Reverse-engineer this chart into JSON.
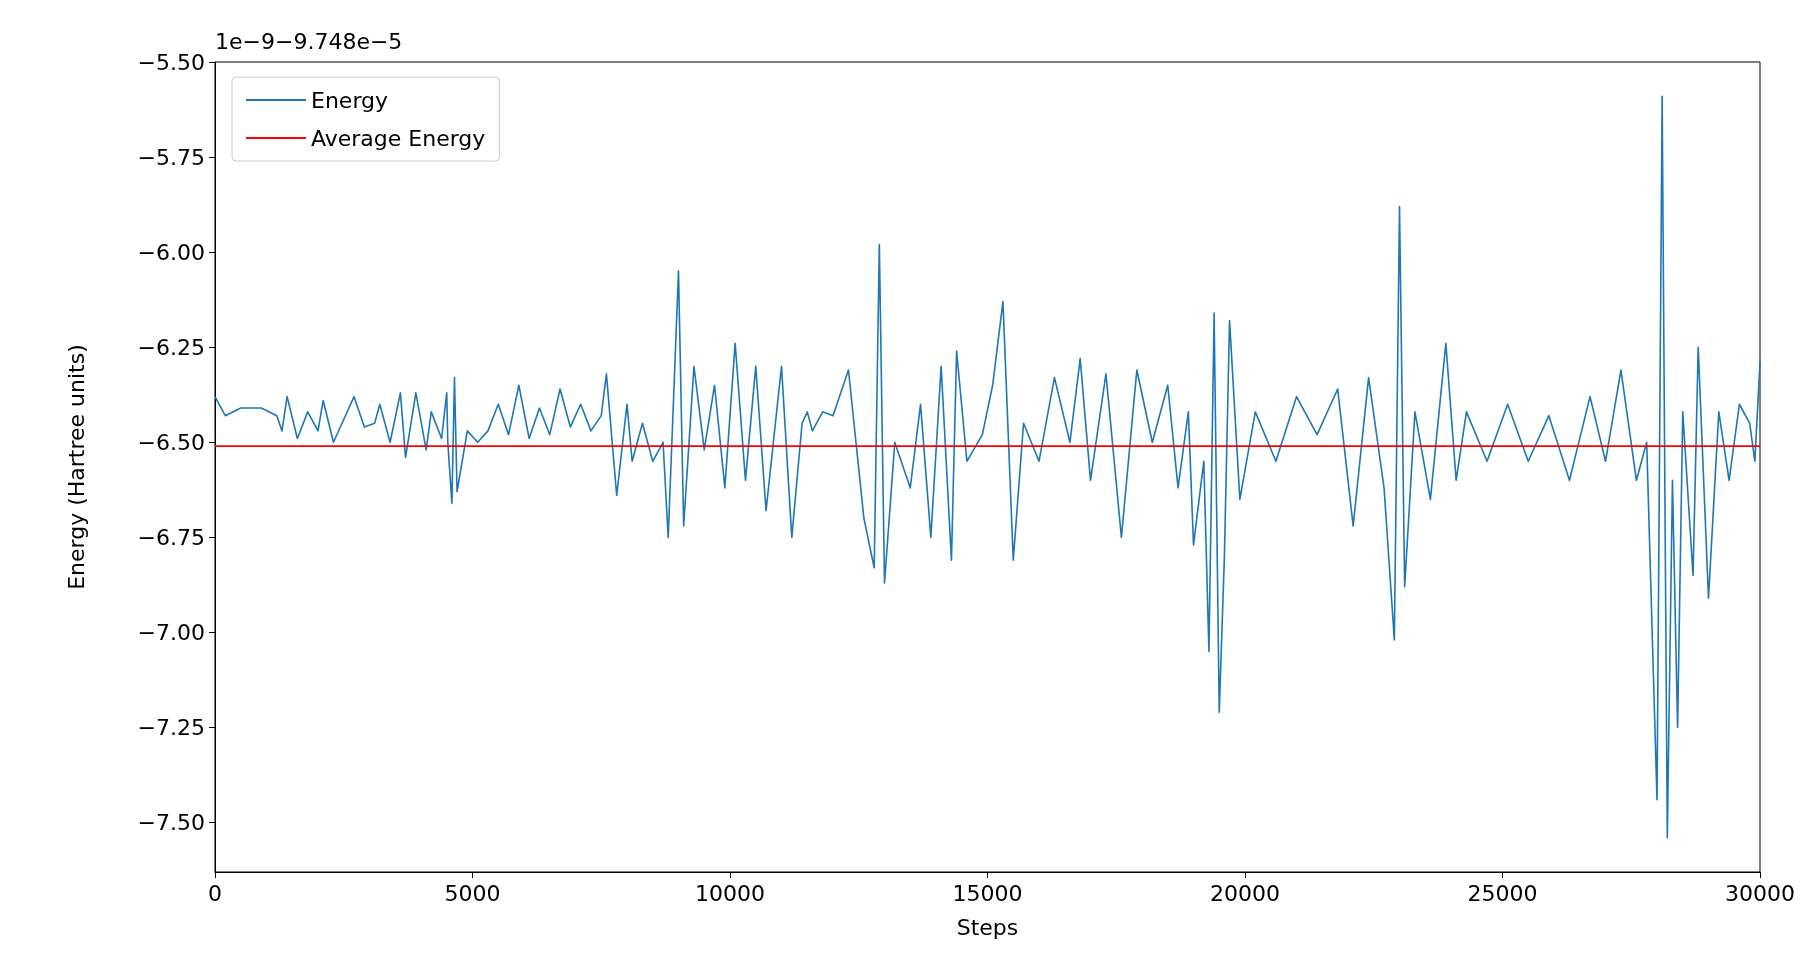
{
  "chart_data": {
    "type": "line",
    "xlabel": "Steps",
    "ylabel": "Energy (Hartree units)",
    "annotations": [
      "1e−9−9.748e−5"
    ],
    "xlim": [
      0,
      30000
    ],
    "xticks": [
      0,
      5000,
      10000,
      15000,
      20000,
      25000,
      30000
    ],
    "ylim": [
      -7.63,
      -5.5
    ],
    "yticks": [
      {
        "value": -7.5,
        "label": "−7.50"
      },
      {
        "value": -7.25,
        "label": "−7.25"
      },
      {
        "value": -7,
        "label": "−7.00"
      },
      {
        "value": -6.75,
        "label": "−6.75"
      },
      {
        "value": -6.5,
        "label": "−6.50"
      },
      {
        "value": -6.25,
        "label": "−6.25"
      },
      {
        "value": -6,
        "label": "−6.00"
      },
      {
        "value": -5.75,
        "label": "−5.75"
      },
      {
        "value": -5.5,
        "label": "−5.50"
      }
    ],
    "grid": false,
    "legend": "top left",
    "marker": "none",
    "line_style": "solid",
    "series": [
      {
        "name": "Energy",
        "color": "#1f77b4",
        "x": [
          0,
          200,
          500,
          900,
          1200,
          1300,
          1400,
          1600,
          1800,
          2000,
          2100,
          2300,
          2500,
          2700,
          2900,
          3100,
          3200,
          3400,
          3600,
          3700,
          3900,
          4100,
          4200,
          4400,
          4500,
          4520,
          4600,
          4650,
          4700,
          4900,
          5100,
          5300,
          5500,
          5700,
          5900,
          6100,
          6300,
          6500,
          6700,
          6900,
          7100,
          7300,
          7500,
          7600,
          7800,
          8000,
          8100,
          8300,
          8500,
          8700,
          8800,
          9000,
          9100,
          9300,
          9500,
          9700,
          9900,
          10100,
          10300,
          10500,
          10700,
          11000,
          11200,
          11400,
          11500,
          11600,
          11800,
          12000,
          12300,
          12600,
          12800,
          12900,
          13000,
          13200,
          13500,
          13700,
          13900,
          14100,
          14300,
          14400,
          14600,
          14900,
          15100,
          15300,
          15500,
          15700,
          16000,
          16300,
          16600,
          16800,
          17000,
          17300,
          17600,
          17900,
          18200,
          18500,
          18700,
          18900,
          19000,
          19200,
          19300,
          19400,
          19500,
          19600,
          19700,
          19900,
          20200,
          20600,
          21000,
          21400,
          21800,
          22100,
          22400,
          22700,
          22900,
          23000,
          23100,
          23300,
          23600,
          23900,
          24100,
          24300,
          24700,
          25100,
          25500,
          25900,
          26300,
          26700,
          27000,
          27300,
          27600,
          27800,
          28000,
          28100,
          28200,
          28300,
          28400,
          28500,
          28700,
          28800,
          29000,
          29200,
          29400,
          29600,
          29800,
          29900,
          30000
        ],
        "values": [
          -6.38,
          -6.43,
          -6.41,
          -6.41,
          -6.43,
          -6.47,
          -6.38,
          -6.49,
          -6.42,
          -6.47,
          -6.39,
          -6.5,
          -6.44,
          -6.38,
          -6.46,
          -6.45,
          -6.4,
          -6.5,
          -6.37,
          -6.54,
          -6.37,
          -6.52,
          -6.42,
          -6.49,
          -6.37,
          -6.5,
          -6.66,
          -6.33,
          -6.63,
          -6.47,
          -6.5,
          -6.47,
          -6.4,
          -6.48,
          -6.35,
          -6.49,
          -6.41,
          -6.48,
          -6.36,
          -6.46,
          -6.4,
          -6.47,
          -6.43,
          -6.32,
          -6.64,
          -6.4,
          -6.55,
          -6.45,
          -6.55,
          -6.5,
          -6.75,
          -6.05,
          -6.72,
          -6.3,
          -6.52,
          -6.35,
          -6.62,
          -6.24,
          -6.6,
          -6.3,
          -6.68,
          -6.3,
          -6.75,
          -6.45,
          -6.42,
          -6.47,
          -6.42,
          -6.43,
          -6.31,
          -6.7,
          -6.83,
          -5.98,
          -6.87,
          -6.5,
          -6.62,
          -6.4,
          -6.75,
          -6.3,
          -6.81,
          -6.26,
          -6.55,
          -6.48,
          -6.35,
          -6.13,
          -6.81,
          -6.45,
          -6.55,
          -6.33,
          -6.5,
          -6.28,
          -6.6,
          -6.32,
          -6.75,
          -6.31,
          -6.5,
          -6.35,
          -6.62,
          -6.42,
          -6.77,
          -6.55,
          -7.05,
          -6.16,
          -7.21,
          -6.8,
          -6.18,
          -6.65,
          -6.42,
          -6.55,
          -6.38,
          -6.48,
          -6.36,
          -6.72,
          -6.33,
          -6.62,
          -7.02,
          -5.88,
          -6.88,
          -6.42,
          -6.65,
          -6.24,
          -6.6,
          -6.42,
          -6.55,
          -6.4,
          -6.55,
          -6.43,
          -6.6,
          -6.38,
          -6.55,
          -6.31,
          -6.6,
          -6.5,
          -7.44,
          -5.59,
          -7.54,
          -6.6,
          -7.25,
          -6.42,
          -6.85,
          -6.25,
          -6.91,
          -6.42,
          -6.6,
          -6.4,
          -6.45,
          -6.55,
          -6.29
        ]
      },
      {
        "name": "Average Energy",
        "color": "#ff0000",
        "x": [
          0,
          30000
        ],
        "values": [
          -6.51,
          -6.51
        ]
      }
    ]
  }
}
